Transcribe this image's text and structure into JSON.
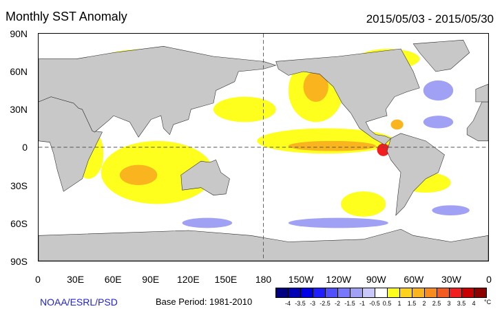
{
  "title": "Monthly SST Anomaly",
  "date_range": "2015/05/03 - 2015/05/30",
  "lat_labels": [
    "90N",
    "60N",
    "30N",
    "0",
    "30S",
    "60S",
    "90S"
  ],
  "lon_labels": [
    "0",
    "30E",
    "60E",
    "90E",
    "120E",
    "150E",
    "180",
    "150W",
    "120W",
    "90W",
    "60W",
    "30W",
    "0"
  ],
  "credit": "NOAA/ESRL/PSD",
  "base_period": "Base Period: 1981-2010",
  "colorbar": {
    "colors": [
      "#000080",
      "#0000b4",
      "#0000e6",
      "#1e1eff",
      "#5050ff",
      "#7878ff",
      "#a0a0f5",
      "#c8c8fa",
      "#ffffff",
      "#ffff1e",
      "#ffd21e",
      "#fab41e",
      "#fa8c1e",
      "#f55a1e",
      "#f01e1e",
      "#c80000",
      "#8c0000"
    ],
    "labels": [
      "-4",
      "-3.5",
      "-3",
      "-2.5",
      "-2",
      "-1.5",
      "-1",
      "-0.5",
      "0.5",
      "1",
      "1.5",
      "2",
      "2.5",
      "3",
      "3.5",
      "4"
    ],
    "unit": "°C"
  }
}
